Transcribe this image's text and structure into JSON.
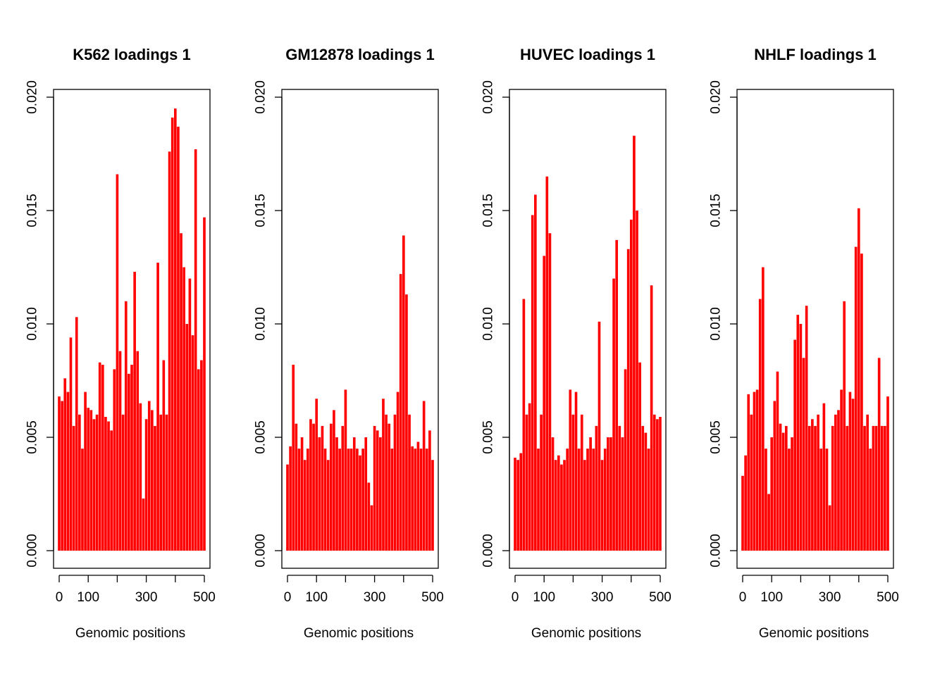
{
  "chart_data": [
    {
      "type": "bar",
      "title": "K562 loadings 1",
      "xlabel": "Genomic positions",
      "ylabel": "",
      "color": "#ff0000",
      "xlim": [
        0,
        500
      ],
      "ylim": [
        0,
        0.02
      ],
      "xticks": [
        0,
        100,
        200,
        300,
        400,
        500
      ],
      "xtick_labels": [
        "0",
        "100",
        "",
        "300",
        "",
        "500"
      ],
      "yticks": [
        0,
        0.005,
        0.01,
        0.015,
        0.02
      ],
      "ytick_labels": [
        "0.000",
        "0.005",
        "0.010",
        "0.015",
        "0.020"
      ],
      "x": [
        0,
        10,
        20,
        30,
        40,
        50,
        60,
        70,
        80,
        90,
        100,
        110,
        120,
        130,
        140,
        150,
        160,
        170,
        180,
        190,
        200,
        210,
        220,
        230,
        240,
        250,
        260,
        270,
        280,
        290,
        300,
        310,
        320,
        330,
        340,
        350,
        360,
        370,
        380,
        390,
        400,
        410,
        420,
        430,
        440,
        450,
        460,
        470,
        480,
        490,
        500
      ],
      "values": [
        0.0068,
        0.0066,
        0.0076,
        0.007,
        0.0094,
        0.0055,
        0.0103,
        0.006,
        0.0045,
        0.007,
        0.0063,
        0.0062,
        0.0058,
        0.006,
        0.0083,
        0.0082,
        0.0059,
        0.0057,
        0.0053,
        0.008,
        0.0166,
        0.0088,
        0.006,
        0.011,
        0.0078,
        0.0082,
        0.0123,
        0.0088,
        0.0065,
        0.0023,
        0.0058,
        0.0066,
        0.0062,
        0.0055,
        0.0127,
        0.006,
        0.0084,
        0.006,
        0.0176,
        0.0191,
        0.0195,
        0.0187,
        0.014,
        0.0125,
        0.01,
        0.012,
        0.0095,
        0.0177,
        0.008,
        0.0084,
        0.0147
      ]
    },
    {
      "type": "bar",
      "title": "GM12878 loadings 1",
      "xlabel": "Genomic positions",
      "ylabel": "",
      "color": "#ff0000",
      "xlim": [
        0,
        500
      ],
      "ylim": [
        0,
        0.02
      ],
      "xticks": [
        0,
        100,
        200,
        300,
        400,
        500
      ],
      "xtick_labels": [
        "0",
        "100",
        "",
        "300",
        "",
        "500"
      ],
      "yticks": [
        0,
        0.005,
        0.01,
        0.015,
        0.02
      ],
      "ytick_labels": [
        "0.000",
        "0.005",
        "0.010",
        "0.015",
        "0.020"
      ],
      "x": [
        0,
        10,
        20,
        30,
        40,
        50,
        60,
        70,
        80,
        90,
        100,
        110,
        120,
        130,
        140,
        150,
        160,
        170,
        180,
        190,
        200,
        210,
        220,
        230,
        240,
        250,
        260,
        270,
        280,
        290,
        300,
        310,
        320,
        330,
        340,
        350,
        360,
        370,
        380,
        390,
        400,
        410,
        420,
        430,
        440,
        450,
        460,
        470,
        480,
        490,
        500
      ],
      "values": [
        0.0038,
        0.0046,
        0.0082,
        0.0056,
        0.0045,
        0.005,
        0.004,
        0.0045,
        0.0058,
        0.0056,
        0.0067,
        0.005,
        0.0055,
        0.0045,
        0.004,
        0.0056,
        0.0062,
        0.005,
        0.0045,
        0.0055,
        0.0071,
        0.0045,
        0.0045,
        0.005,
        0.0045,
        0.0042,
        0.0045,
        0.005,
        0.003,
        0.002,
        0.0055,
        0.0053,
        0.005,
        0.0067,
        0.006,
        0.0056,
        0.0045,
        0.006,
        0.007,
        0.0122,
        0.0139,
        0.0113,
        0.006,
        0.0046,
        0.0045,
        0.0048,
        0.0045,
        0.0066,
        0.0045,
        0.0053,
        0.004
      ]
    },
    {
      "type": "bar",
      "title": "HUVEC loadings 1",
      "xlabel": "Genomic positions",
      "ylabel": "",
      "color": "#ff0000",
      "xlim": [
        0,
        500
      ],
      "ylim": [
        0,
        0.02
      ],
      "xticks": [
        0,
        100,
        200,
        300,
        400,
        500
      ],
      "xtick_labels": [
        "0",
        "100",
        "",
        "300",
        "",
        "500"
      ],
      "yticks": [
        0,
        0.005,
        0.01,
        0.015,
        0.02
      ],
      "ytick_labels": [
        "0.000",
        "0.005",
        "0.010",
        "0.015",
        "0.020"
      ],
      "x": [
        0,
        10,
        20,
        30,
        40,
        50,
        60,
        70,
        80,
        90,
        100,
        110,
        120,
        130,
        140,
        150,
        160,
        170,
        180,
        190,
        200,
        210,
        220,
        230,
        240,
        250,
        260,
        270,
        280,
        290,
        300,
        310,
        320,
        330,
        340,
        350,
        360,
        370,
        380,
        390,
        400,
        410,
        420,
        430,
        440,
        450,
        460,
        470,
        480,
        490,
        500
      ],
      "values": [
        0.0041,
        0.004,
        0.0043,
        0.0111,
        0.006,
        0.0065,
        0.0148,
        0.0157,
        0.0045,
        0.006,
        0.013,
        0.0165,
        0.014,
        0.005,
        0.004,
        0.0042,
        0.0038,
        0.004,
        0.0045,
        0.0071,
        0.006,
        0.007,
        0.0045,
        0.006,
        0.004,
        0.0045,
        0.005,
        0.0045,
        0.0055,
        0.0101,
        0.004,
        0.0045,
        0.005,
        0.005,
        0.012,
        0.0137,
        0.0055,
        0.005,
        0.008,
        0.0133,
        0.0146,
        0.0183,
        0.015,
        0.0083,
        0.0055,
        0.0052,
        0.0045,
        0.0117,
        0.006,
        0.0058,
        0.0059
      ]
    },
    {
      "type": "bar",
      "title": "NHLF loadings 1",
      "xlabel": "Genomic positions",
      "ylabel": "",
      "color": "#ff0000",
      "xlim": [
        0,
        500
      ],
      "ylim": [
        0,
        0.02
      ],
      "xticks": [
        0,
        100,
        200,
        300,
        400,
        500
      ],
      "xtick_labels": [
        "0",
        "100",
        "",
        "300",
        "",
        "500"
      ],
      "yticks": [
        0,
        0.005,
        0.01,
        0.015,
        0.02
      ],
      "ytick_labels": [
        "0.000",
        "0.005",
        "0.010",
        "0.015",
        "0.020"
      ],
      "x": [
        0,
        10,
        20,
        30,
        40,
        50,
        60,
        70,
        80,
        90,
        100,
        110,
        120,
        130,
        140,
        150,
        160,
        170,
        180,
        190,
        200,
        210,
        220,
        230,
        240,
        250,
        260,
        270,
        280,
        290,
        300,
        310,
        320,
        330,
        340,
        350,
        360,
        370,
        380,
        390,
        400,
        410,
        420,
        430,
        440,
        450,
        460,
        470,
        480,
        490,
        500
      ],
      "values": [
        0.0033,
        0.0042,
        0.0069,
        0.006,
        0.007,
        0.0071,
        0.0111,
        0.0125,
        0.0045,
        0.0025,
        0.005,
        0.0066,
        0.0079,
        0.0056,
        0.0052,
        0.0055,
        0.0045,
        0.005,
        0.0093,
        0.0104,
        0.01,
        0.0085,
        0.0108,
        0.0055,
        0.0058,
        0.0055,
        0.006,
        0.0045,
        0.0065,
        0.0045,
        0.002,
        0.0055,
        0.006,
        0.0062,
        0.0071,
        0.011,
        0.0055,
        0.007,
        0.0067,
        0.0134,
        0.0151,
        0.0131,
        0.0055,
        0.006,
        0.0045,
        0.0055,
        0.0055,
        0.0085,
        0.0055,
        0.0055,
        0.0068
      ]
    }
  ]
}
